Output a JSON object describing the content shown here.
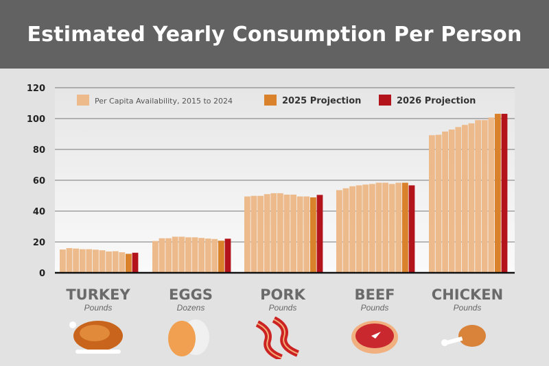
{
  "title": "Estimated Yearly Consumption Per Person",
  "chart_data": {
    "type": "bar",
    "ylim": [
      0,
      120
    ],
    "yticks": [
      0,
      20,
      40,
      60,
      80,
      100,
      120
    ],
    "grid": true,
    "legend_position": "top",
    "legend": [
      {
        "label": "Per Capita Availability, 2015 to 2024",
        "color": "#EDBA8B"
      },
      {
        "label": "2025 Projection",
        "color": "#D9822B"
      },
      {
        "label": "2026 Projection",
        "color": "#B3141C"
      }
    ],
    "categories": [
      {
        "name": "TURKEY",
        "unit": "Pounds",
        "icon": "turkey-icon",
        "values": [
          15.1,
          16.0,
          15.7,
          15.3,
          15.3,
          15.0,
          14.6,
          13.8,
          14.0,
          13.3
        ],
        "p2025": 12.3,
        "p2026": 13.0
      },
      {
        "name": "EGGS",
        "unit": "Dozens",
        "icon": "eggs-icon",
        "values": [
          20.6,
          22.4,
          22.4,
          23.4,
          23.4,
          23.0,
          23.0,
          22.6,
          22.2,
          21.9
        ],
        "p2025": 20.8,
        "p2026": 22.1
      },
      {
        "name": "PORK",
        "unit": "Pounds",
        "icon": "bacon-icon",
        "values": [
          49.5,
          49.9,
          49.9,
          51.0,
          51.6,
          51.6,
          50.7,
          50.7,
          49.5,
          49.5
        ],
        "p2025": 48.9,
        "p2026": 50.5
      },
      {
        "name": "BEEF",
        "unit": "Pounds",
        "icon": "steak-icon",
        "values": [
          53.6,
          54.8,
          56.1,
          56.7,
          57.2,
          57.6,
          58.4,
          58.4,
          57.6,
          58.4
        ],
        "p2025": 58.4,
        "p2026": 56.7
      },
      {
        "name": "CHICKEN",
        "unit": "Pounds",
        "icon": "chicken-leg-icon",
        "values": [
          89.2,
          89.5,
          91.6,
          92.9,
          94.5,
          95.9,
          96.9,
          99.0,
          99.0,
          100.7
        ],
        "p2025": 103.1,
        "p2026": 103.1
      }
    ]
  }
}
